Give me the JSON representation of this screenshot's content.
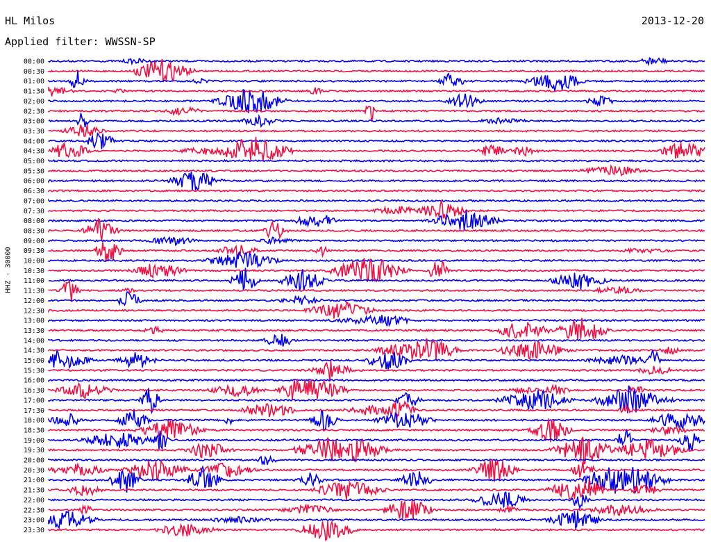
{
  "header": {
    "station": "HL Milos",
    "date": "2013-12-20",
    "filter": "Applied filter: WWSSN-SP"
  },
  "chart_data": {
    "type": "line",
    "title": "HL Milos",
    "ylabel": "HHZ - 30000",
    "xlabel": "",
    "trace_colors": [
      "#0000ee",
      "#ee1144"
    ],
    "row_labels": [
      "00:00",
      "00:30",
      "01:00",
      "01:30",
      "02:00",
      "02:30",
      "03:00",
      "03:30",
      "04:00",
      "04:30",
      "05:00",
      "05:30",
      "06:00",
      "06:30",
      "07:00",
      "07:30",
      "08:00",
      "08:30",
      "09:00",
      "09:30",
      "10:00",
      "10:30",
      "11:00",
      "11:30",
      "12:00",
      "12:30",
      "13:00",
      "13:30",
      "14:00",
      "14:30",
      "15:00",
      "15:30",
      "16:00",
      "16:30",
      "17:00",
      "17:30",
      "18:00",
      "18:30",
      "19:00",
      "19:30",
      "20:00",
      "20:30",
      "21:00",
      "21:30",
      "22:00",
      "22:30",
      "23:00",
      "23:30"
    ],
    "grid": false,
    "legend": "none"
  }
}
